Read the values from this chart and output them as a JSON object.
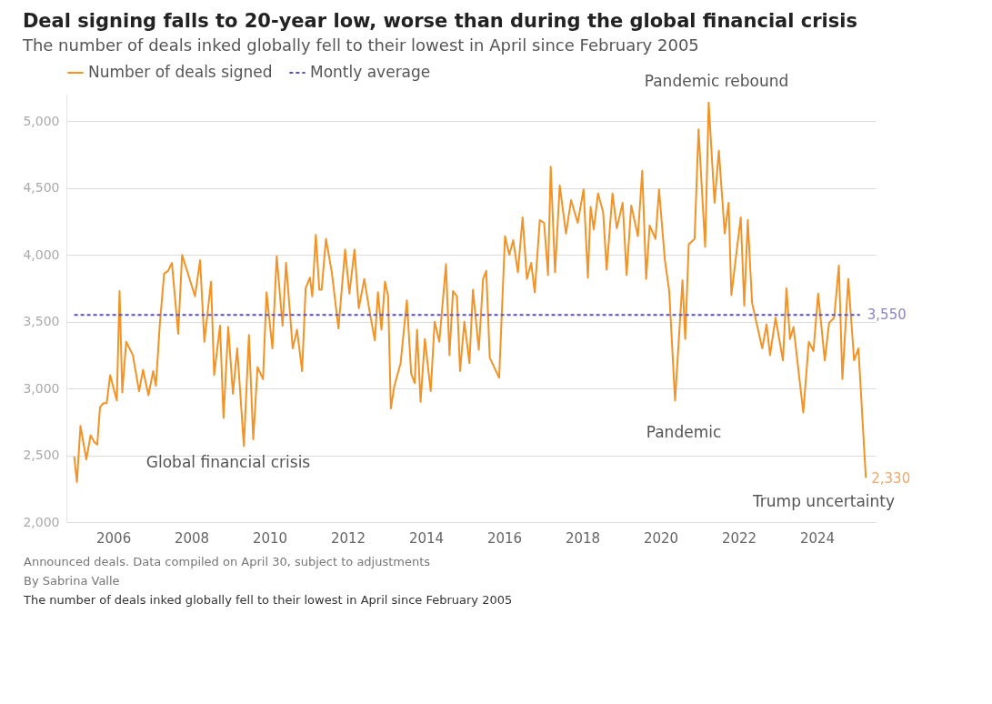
{
  "chart_data": {
    "type": "line",
    "title": "Deal signing falls to 20-year low, worse than during the global financial crisis",
    "subtitle": "The number of deals inked globally fell to their lowest in April since February 2005",
    "x": [
      2005.0,
      2005.07,
      2005.16,
      2005.31,
      2005.42,
      2005.51,
      2005.59,
      2005.66,
      2005.75,
      2005.83,
      2005.92,
      2006.09,
      2006.16,
      2006.23,
      2006.33,
      2006.5,
      2006.66,
      2006.76,
      2006.9,
      2007.02,
      2007.09,
      2007.19,
      2007.3,
      2007.4,
      2007.5,
      2007.66,
      2007.76,
      2007.92,
      2008.09,
      2008.22,
      2008.33,
      2008.5,
      2008.58,
      2008.73,
      2008.82,
      2008.94,
      2009.06,
      2009.17,
      2009.34,
      2009.47,
      2009.58,
      2009.69,
      2009.83,
      2009.92,
      2010.07,
      2010.18,
      2010.33,
      2010.42,
      2010.59,
      2010.7,
      2010.83,
      2010.92,
      2011.03,
      2011.09,
      2011.18,
      2011.27,
      2011.33,
      2011.44,
      2011.59,
      2011.76,
      2011.93,
      2012.04,
      2012.17,
      2012.28,
      2012.42,
      2012.56,
      2012.69,
      2012.77,
      2012.86,
      2012.95,
      2013.03,
      2013.1,
      2013.19,
      2013.35,
      2013.51,
      2013.62,
      2013.71,
      2013.77,
      2013.86,
      2013.97,
      2014.12,
      2014.22,
      2014.34,
      2014.51,
      2014.6,
      2014.69,
      2014.79,
      2014.87,
      2014.98,
      2015.11,
      2015.2,
      2015.35,
      2015.46,
      2015.54,
      2015.63,
      2015.87,
      2016.02,
      2016.13,
      2016.23,
      2016.35,
      2016.47,
      2016.58,
      2016.69,
      2016.78,
      2016.91,
      2017.02,
      2017.12,
      2017.19,
      2017.3,
      2017.42,
      2017.58,
      2017.71,
      2017.88,
      2018.03,
      2018.14,
      2018.21,
      2018.29,
      2018.4,
      2018.53,
      2018.62,
      2018.77,
      2018.88,
      2019.03,
      2019.13,
      2019.25,
      2019.42,
      2019.53,
      2019.63,
      2019.72,
      2019.87,
      2019.96,
      2020.11,
      2020.22,
      2020.37,
      2020.56,
      2020.63,
      2020.72,
      2020.87,
      2020.97,
      2021.14,
      2021.23,
      2021.38,
      2021.49,
      2021.64,
      2021.74,
      2021.81,
      2022.05,
      2022.14,
      2022.23,
      2022.34,
      2022.6,
      2022.71,
      2022.8,
      2022.94,
      2023.13,
      2023.22,
      2023.31,
      2023.4,
      2023.65,
      2023.79,
      2023.91,
      2024.03,
      2024.2,
      2024.31,
      2024.44,
      2024.56,
      2024.65,
      2024.8,
      2024.95,
      2025.06,
      2025.25
    ],
    "series": [
      {
        "name": "Number of deals signed",
        "color": "#f39325",
        "line_style": "solid",
        "values": [
          2490,
          2300,
          2720,
          2470,
          2650,
          2600,
          2580,
          2860,
          2890,
          2890,
          3100,
          2910,
          3730,
          2970,
          3350,
          3250,
          2980,
          3140,
          2950,
          3130,
          3020,
          3480,
          3860,
          3880,
          3940,
          3410,
          4000,
          3850,
          3690,
          3960,
          3350,
          3800,
          3100,
          3470,
          2780,
          3460,
          2960,
          3300,
          2570,
          3400,
          2620,
          3160,
          3070,
          3720,
          3300,
          3990,
          3470,
          3940,
          3300,
          3440,
          3130,
          3750,
          3830,
          3690,
          4150,
          3740,
          3740,
          4120,
          3870,
          3450,
          4040,
          3710,
          4040,
          3600,
          3820,
          3570,
          3360,
          3720,
          3440,
          3800,
          3690,
          2850,
          3020,
          3190,
          3660,
          3110,
          3040,
          3440,
          2900,
          3370,
          2980,
          3500,
          3350,
          3930,
          3250,
          3730,
          3690,
          3130,
          3500,
          3190,
          3740,
          3290,
          3820,
          3880,
          3230,
          3080,
          4140,
          4000,
          4110,
          3870,
          4280,
          3820,
          3940,
          3720,
          4260,
          4240,
          3850,
          4660,
          3870,
          4520,
          4160,
          4410,
          4240,
          4490,
          3830,
          4360,
          4190,
          4460,
          4320,
          3890,
          4460,
          4200,
          4390,
          3850,
          4370,
          4140,
          4630,
          3820,
          4220,
          4120,
          4490,
          3960,
          3730,
          2910,
          3810,
          3370,
          4080,
          4120,
          4940,
          4060,
          5140,
          4390,
          4780,
          4160,
          4390,
          3700,
          4280,
          3620,
          4260,
          3640,
          3300,
          3480,
          3250,
          3530,
          3210,
          3750,
          3370,
          3460,
          2820,
          3350,
          3280,
          3710,
          3210,
          3490,
          3530,
          3920,
          3070,
          3820,
          3210,
          3300,
          2330
        ]
      },
      {
        "name": "Montly average",
        "color": "#5b4fc4",
        "type": "line",
        "line_style": "dashed",
        "x": [
          2005.0,
          2025.1
        ],
        "values": [
          3550,
          3550
        ],
        "value_labels": [
          null,
          "3,550"
        ]
      }
    ],
    "xlim": [
      2004.8,
      2025.5
    ],
    "xticks": [
      2006,
      2008,
      2010,
      2012,
      2014,
      2016,
      2018,
      2020,
      2022,
      2024
    ],
    "ylim": [
      2000,
      5200
    ],
    "yticks": [
      {
        "value": 2000,
        "label": "2,000"
      },
      {
        "value": 2500,
        "label": "2,500"
      },
      {
        "value": 3000,
        "label": "3,000"
      },
      {
        "value": 3500,
        "label": "3,500"
      },
      {
        "value": 4000,
        "label": "4,000"
      },
      {
        "value": 4500,
        "label": "4,500"
      },
      {
        "value": 5000,
        "label": "5,000"
      }
    ],
    "grid": "y",
    "legend": "top left",
    "annotations": [
      "Global financial crisis",
      "Pandemic",
      "Pandemic rebound",
      "Trump uncertainty",
      {
        "text": "2,330",
        "x": 2025.25,
        "y": 2330
      },
      "Announced deals. Data compiled on April 30, subject to adjustments",
      "By Sabrina Valle",
      "The number of deals inked globally fell to their lowest in April since February 2005"
    ]
  }
}
